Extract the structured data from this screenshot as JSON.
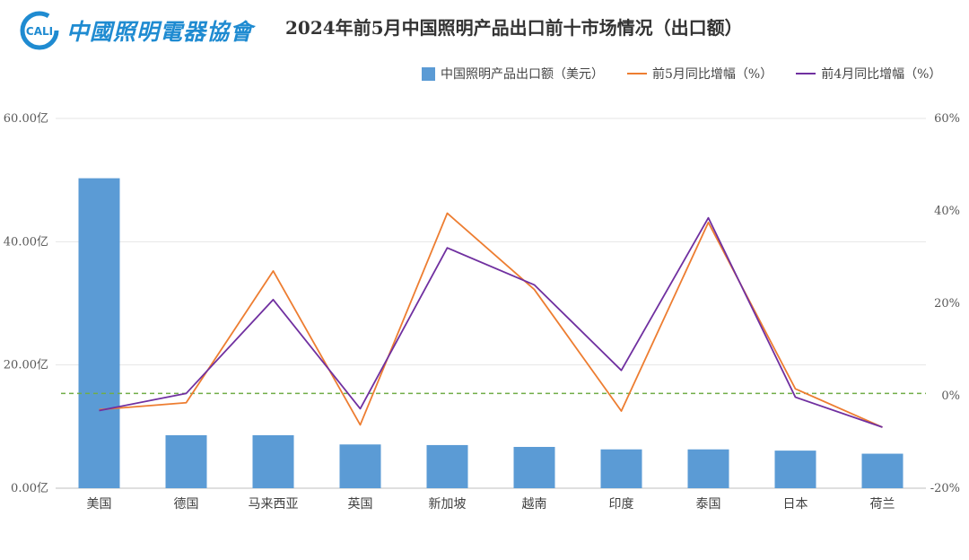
{
  "header": {
    "logo_mark_text": "CALI",
    "logo_text": "中國照明電器協會",
    "title": "2024年前5月中国照明产品出口前十市场情况（出口额）"
  },
  "chart_data": {
    "type": "bar+line",
    "title": "2024年前5月中国照明产品出口前十市场情况（出口额）",
    "categories": [
      "美国",
      "德国",
      "马来西亚",
      "英国",
      "新加坡",
      "越南",
      "印度",
      "泰国",
      "日本",
      "荷兰"
    ],
    "series": [
      {
        "name": "中国照明产品出口额（美元）",
        "type": "bar",
        "axis": "left",
        "color": "#5b9bd5",
        "values": [
          50.3,
          8.6,
          8.6,
          7.1,
          7.0,
          6.7,
          6.3,
          6.3,
          6.1,
          5.6
        ]
      },
      {
        "name": "前5月同比增幅（%）",
        "type": "line",
        "axis": "right",
        "color": "#ed7d31",
        "values": [
          -3.0,
          -1.5,
          27.0,
          -6.3,
          39.5,
          23.0,
          -3.3,
          37.5,
          1.5,
          -6.8
        ]
      },
      {
        "name": "前4月同比增幅（%）",
        "type": "line",
        "axis": "right",
        "color": "#7030a0",
        "values": [
          -3.2,
          0.5,
          20.8,
          -2.8,
          32.0,
          24.0,
          5.5,
          38.5,
          -0.3,
          -6.8
        ]
      }
    ],
    "reference_line": {
      "axis": "right",
      "value": 0.5,
      "color": "#70ad47",
      "style": "dashed"
    },
    "left_axis": {
      "ylim": [
        0,
        60
      ],
      "ticks": [
        0,
        20,
        40,
        60
      ],
      "tick_labels": [
        "0.00亿",
        "20.00亿",
        "40.00亿",
        "60.00亿"
      ]
    },
    "right_axis": {
      "ylim": [
        -20,
        60
      ],
      "ticks": [
        -20,
        0,
        20,
        40,
        60
      ],
      "tick_labels": [
        "-20%",
        "0%",
        "20%",
        "40%",
        "60%"
      ]
    },
    "grid": true,
    "legend_position": "top-right"
  }
}
